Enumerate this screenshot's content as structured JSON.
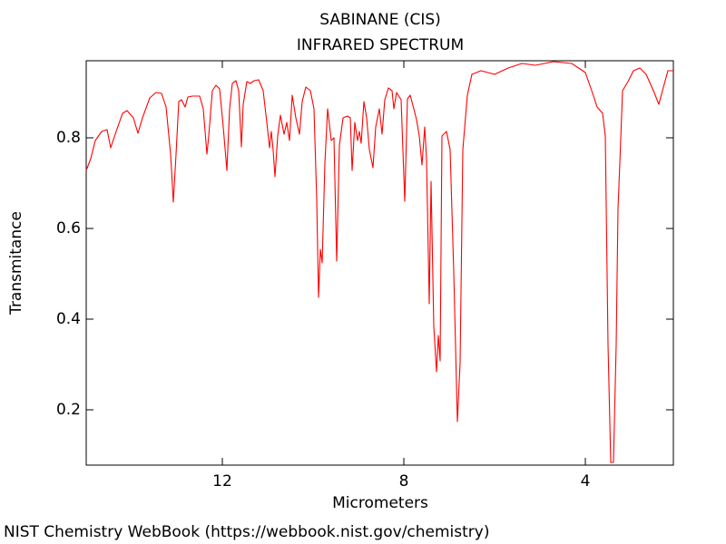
{
  "chart_data": {
    "type": "line",
    "title": "SABINANE (CIS)",
    "subtitle": "INFRARED SPECTRUM",
    "x_label": "Micrometers",
    "y_label": "Transmitance",
    "source": "NIST Chemistry WebBook (https://webbook.nist.gov/chemistry)",
    "color": "#ff0000",
    "xlim": [
      15,
      2.06
    ],
    "ylim": [
      0.078,
      0.97
    ],
    "xticks": [
      12,
      8,
      4
    ],
    "yticks": [
      0.2,
      0.4,
      0.6,
      0.8
    ],
    "x": [
      15,
      14.9,
      14.8,
      14.66,
      14.54,
      14.46,
      14.34,
      14.2,
      14.1,
      13.96,
      13.86,
      13.76,
      13.6,
      13.46,
      13.34,
      13.24,
      13.14,
      13.08,
      13.02,
      12.96,
      12.9,
      12.82,
      12.76,
      12.66,
      12.5,
      12.42,
      12.34,
      12.3,
      12.22,
      12.14,
      12.06,
      11.98,
      11.9,
      11.84,
      11.78,
      11.7,
      11.64,
      11.58,
      11.54,
      11.46,
      11.38,
      11.3,
      11.2,
      11.1,
      11.02,
      10.96,
      10.92,
      10.88,
      10.84,
      10.78,
      10.72,
      10.64,
      10.58,
      10.52,
      10.46,
      10.38,
      10.3,
      10.24,
      10.16,
      10.06,
      9.98,
      9.92,
      9.88,
      9.84,
      9.8,
      9.74,
      9.68,
      9.6,
      9.54,
      9.48,
      9.42,
      9.34,
      9.24,
      9.18,
      9.14,
      9.08,
      9.02,
      8.98,
      8.94,
      8.88,
      8.82,
      8.76,
      8.68,
      8.62,
      8.54,
      8.48,
      8.42,
      8.34,
      8.26,
      8.22,
      8.16,
      8.06,
      7.98,
      7.92,
      7.86,
      7.78,
      7.72,
      7.66,
      7.6,
      7.54,
      7.5,
      7.44,
      7.4,
      7.34,
      7.28,
      7.24,
      7.2,
      7.16,
      7.06,
      6.98,
      6.9,
      6.82,
      6.76,
      6.7,
      6.6,
      6.5,
      6.3,
      6.0,
      5.7,
      5.4,
      5.1,
      4.7,
      4.3,
      4.0,
      3.86,
      3.74,
      3.62,
      3.56,
      3.5,
      3.44,
      3.38,
      3.32,
      3.28,
      3.24,
      3.18,
      3.06,
      2.94,
      2.8,
      2.66,
      2.5,
      2.38,
      2.3,
      2.18,
      2.06
    ],
    "values": [
      0.728,
      0.754,
      0.794,
      0.814,
      0.818,
      0.778,
      0.814,
      0.854,
      0.86,
      0.844,
      0.81,
      0.844,
      0.888,
      0.9,
      0.898,
      0.868,
      0.764,
      0.658,
      0.764,
      0.88,
      0.884,
      0.868,
      0.89,
      0.892,
      0.892,
      0.864,
      0.764,
      0.804,
      0.904,
      0.916,
      0.908,
      0.824,
      0.728,
      0.864,
      0.92,
      0.926,
      0.904,
      0.78,
      0.874,
      0.924,
      0.92,
      0.926,
      0.928,
      0.904,
      0.834,
      0.778,
      0.814,
      0.772,
      0.714,
      0.804,
      0.85,
      0.808,
      0.834,
      0.794,
      0.894,
      0.844,
      0.808,
      0.88,
      0.912,
      0.904,
      0.864,
      0.664,
      0.448,
      0.554,
      0.524,
      0.744,
      0.864,
      0.794,
      0.8,
      0.528,
      0.784,
      0.844,
      0.848,
      0.844,
      0.728,
      0.834,
      0.794,
      0.814,
      0.788,
      0.88,
      0.844,
      0.774,
      0.734,
      0.824,
      0.864,
      0.808,
      0.884,
      0.91,
      0.904,
      0.864,
      0.9,
      0.884,
      0.66,
      0.886,
      0.894,
      0.864,
      0.84,
      0.804,
      0.74,
      0.824,
      0.754,
      0.434,
      0.704,
      0.384,
      0.284,
      0.364,
      0.308,
      0.804,
      0.814,
      0.774,
      0.504,
      0.174,
      0.304,
      0.774,
      0.894,
      0.94,
      0.948,
      0.94,
      0.954,
      0.964,
      0.96,
      0.968,
      0.964,
      0.944,
      0.904,
      0.868,
      0.854,
      0.804,
      0.344,
      0.084,
      0.084,
      0.344,
      0.644,
      0.744,
      0.904,
      0.924,
      0.948,
      0.954,
      0.94,
      0.904,
      0.874,
      0.904,
      0.948,
      0.948
    ]
  }
}
